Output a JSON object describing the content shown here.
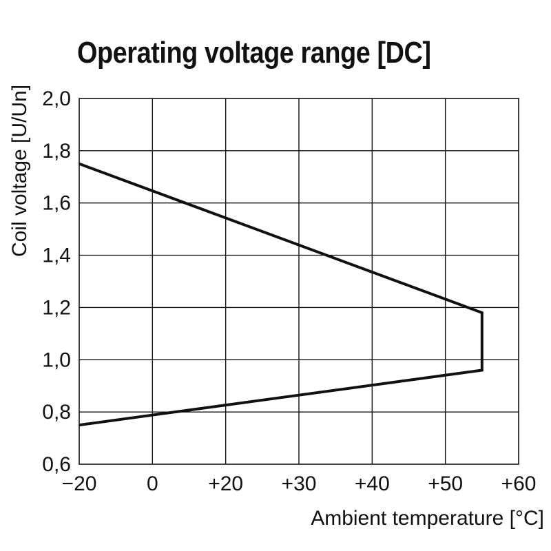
{
  "chart_data": {
    "type": "line",
    "title": "Operating voltage range [DC]",
    "xlabel": "Ambient temperature [°C]",
    "ylabel": "Coil voltage [U/Un]",
    "xlim": [
      -20,
      60
    ],
    "ylim": [
      0.6,
      2.0
    ],
    "x_ticks": [
      "−20",
      "0",
      "+20",
      "+30",
      "+40",
      "+50",
      "+60"
    ],
    "y_ticks": [
      "2,0",
      "1,8",
      "1,6",
      "1,4",
      "1,2",
      "1,0",
      "0,8",
      "0,6"
    ],
    "grid": true,
    "series": [
      {
        "values": [
          {
            "x": -20,
            "y": 1.75
          },
          {
            "x": 55,
            "y": 1.18
          },
          {
            "x": 55,
            "y": 0.96
          },
          {
            "x": -20,
            "y": 0.75
          }
        ]
      }
    ],
    "line_color": "#111111",
    "grid_color": "#111111"
  }
}
